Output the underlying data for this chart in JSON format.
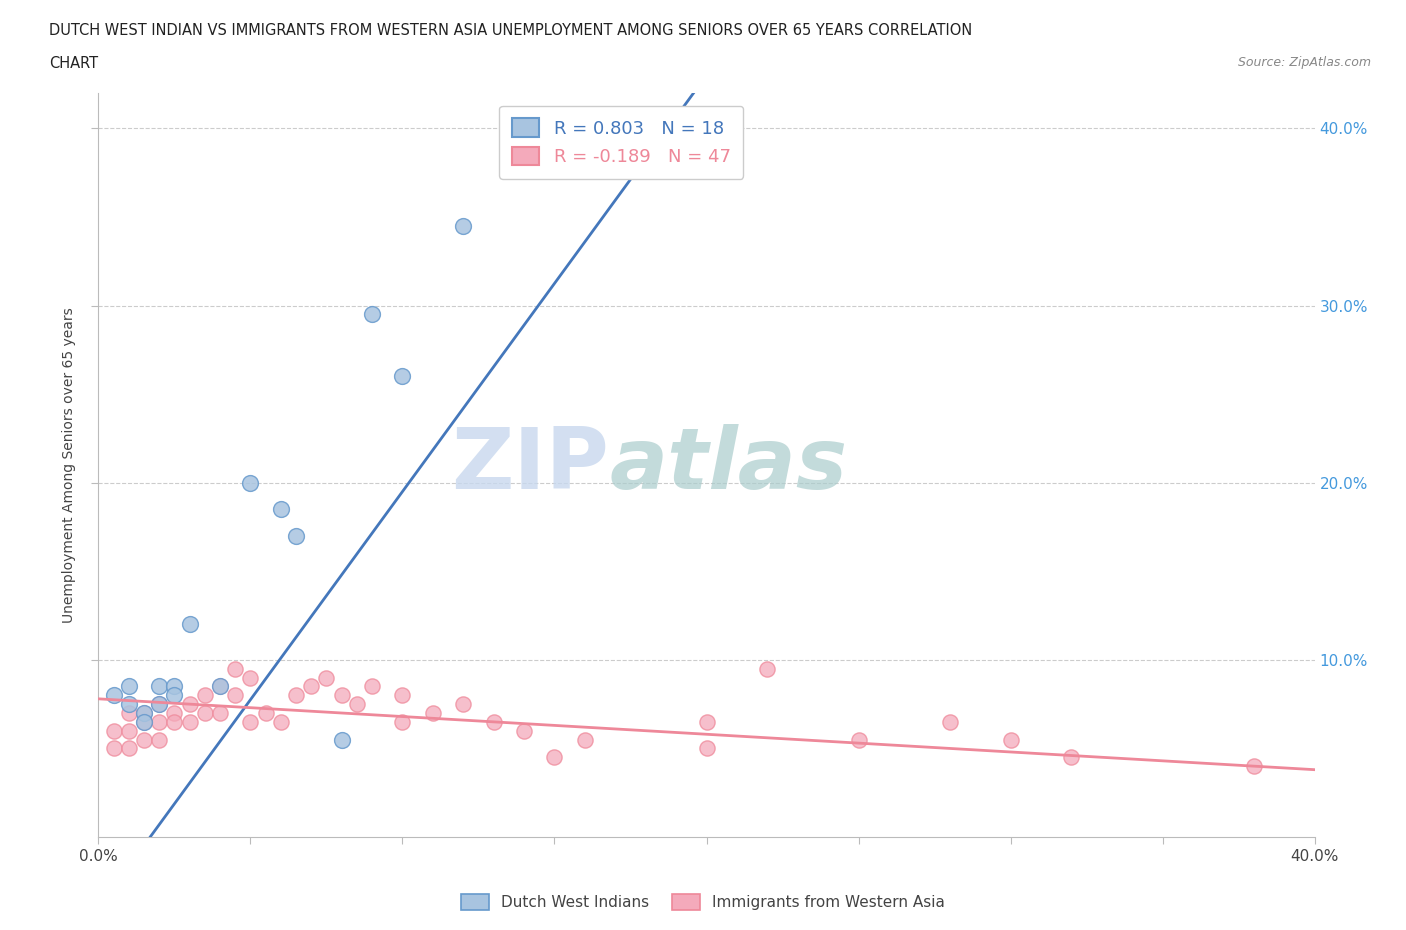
{
  "title_line1": "DUTCH WEST INDIAN VS IMMIGRANTS FROM WESTERN ASIA UNEMPLOYMENT AMONG SENIORS OVER 65 YEARS CORRELATION",
  "title_line2": "CHART",
  "source": "Source: ZipAtlas.com",
  "ylabel": "Unemployment Among Seniors over 65 years",
  "legend1_label": "R = 0.803   N = 18",
  "legend2_label": "R = -0.189   N = 47",
  "legend1_bottom": "Dutch West Indians",
  "legend2_bottom": "Immigrants from Western Asia",
  "watermark_zip": "ZIP",
  "watermark_atlas": "atlas",
  "blue_color": "#A8C4E0",
  "blue_edge_color": "#6699CC",
  "pink_color": "#F4AABB",
  "pink_edge_color": "#EE8899",
  "blue_line_color": "#4477BB",
  "pink_line_color": "#EE8899",
  "blue_scatter": [
    [
      0.005,
      0.08
    ],
    [
      0.01,
      0.085
    ],
    [
      0.01,
      0.075
    ],
    [
      0.015,
      0.07
    ],
    [
      0.015,
      0.065
    ],
    [
      0.02,
      0.085
    ],
    [
      0.02,
      0.075
    ],
    [
      0.025,
      0.085
    ],
    [
      0.025,
      0.08
    ],
    [
      0.03,
      0.12
    ],
    [
      0.04,
      0.085
    ],
    [
      0.05,
      0.2
    ],
    [
      0.06,
      0.185
    ],
    [
      0.065,
      0.17
    ],
    [
      0.08,
      0.055
    ],
    [
      0.09,
      0.295
    ],
    [
      0.1,
      0.26
    ],
    [
      0.12,
      0.345
    ]
  ],
  "pink_scatter": [
    [
      0.005,
      0.06
    ],
    [
      0.005,
      0.05
    ],
    [
      0.01,
      0.07
    ],
    [
      0.01,
      0.06
    ],
    [
      0.01,
      0.05
    ],
    [
      0.015,
      0.07
    ],
    [
      0.015,
      0.065
    ],
    [
      0.015,
      0.055
    ],
    [
      0.02,
      0.075
    ],
    [
      0.02,
      0.065
    ],
    [
      0.02,
      0.055
    ],
    [
      0.025,
      0.07
    ],
    [
      0.025,
      0.065
    ],
    [
      0.03,
      0.075
    ],
    [
      0.03,
      0.065
    ],
    [
      0.035,
      0.08
    ],
    [
      0.035,
      0.07
    ],
    [
      0.04,
      0.085
    ],
    [
      0.04,
      0.07
    ],
    [
      0.045,
      0.095
    ],
    [
      0.045,
      0.08
    ],
    [
      0.05,
      0.09
    ],
    [
      0.05,
      0.065
    ],
    [
      0.055,
      0.07
    ],
    [
      0.06,
      0.065
    ],
    [
      0.065,
      0.08
    ],
    [
      0.07,
      0.085
    ],
    [
      0.075,
      0.09
    ],
    [
      0.08,
      0.08
    ],
    [
      0.085,
      0.075
    ],
    [
      0.09,
      0.085
    ],
    [
      0.1,
      0.08
    ],
    [
      0.1,
      0.065
    ],
    [
      0.11,
      0.07
    ],
    [
      0.12,
      0.075
    ],
    [
      0.13,
      0.065
    ],
    [
      0.14,
      0.06
    ],
    [
      0.15,
      0.045
    ],
    [
      0.16,
      0.055
    ],
    [
      0.2,
      0.05
    ],
    [
      0.2,
      0.065
    ],
    [
      0.22,
      0.095
    ],
    [
      0.25,
      0.055
    ],
    [
      0.28,
      0.065
    ],
    [
      0.3,
      0.055
    ],
    [
      0.32,
      0.045
    ],
    [
      0.38,
      0.04
    ]
  ],
  "blue_line_x": [
    0.0,
    0.4
  ],
  "blue_line_y": [
    -0.04,
    0.9
  ],
  "pink_line_x": [
    0.0,
    0.4
  ],
  "pink_line_y": [
    0.078,
    0.038
  ],
  "xmin": 0.0,
  "xmax": 0.4,
  "ymin": 0.0,
  "ymax": 0.42,
  "xtick_positions": [
    0.0,
    0.05,
    0.1,
    0.15,
    0.2,
    0.25,
    0.3,
    0.35,
    0.4
  ],
  "ytick_positions": [
    0.1,
    0.2,
    0.3,
    0.4
  ],
  "background_color": "#FFFFFF"
}
